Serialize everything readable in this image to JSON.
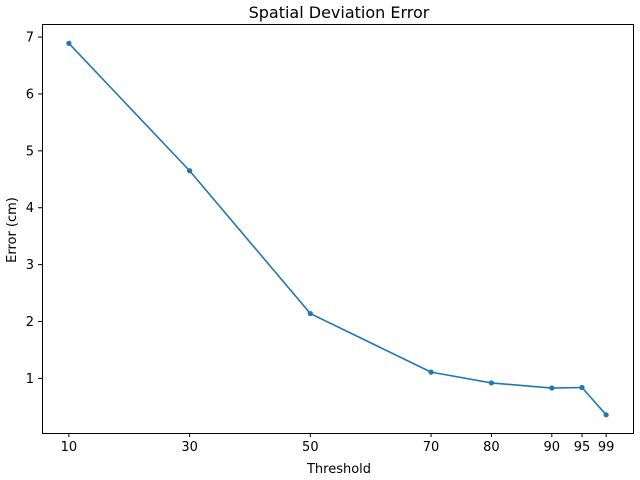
{
  "chart_data": {
    "type": "line",
    "title": "Spatial Deviation Error",
    "xlabel": "Threshold",
    "ylabel": "Error (cm)",
    "x": [
      10,
      30,
      50,
      70,
      80,
      90,
      95,
      99
    ],
    "xticks": [
      "10",
      "30",
      "50",
      "70",
      "80",
      "90",
      "95",
      "99"
    ],
    "yticks": [
      "1",
      "2",
      "3",
      "4",
      "5",
      "6",
      "7"
    ],
    "xlim": [
      5.55,
      103.45
    ],
    "ylim": [
      0.04,
      7.23
    ],
    "grid": false,
    "series": [
      {
        "values": [
          6.89,
          4.65,
          2.14,
          1.11,
          0.92,
          0.83,
          0.84,
          0.36
        ],
        "color": "#1f77b4",
        "marker": "circle"
      }
    ]
  }
}
